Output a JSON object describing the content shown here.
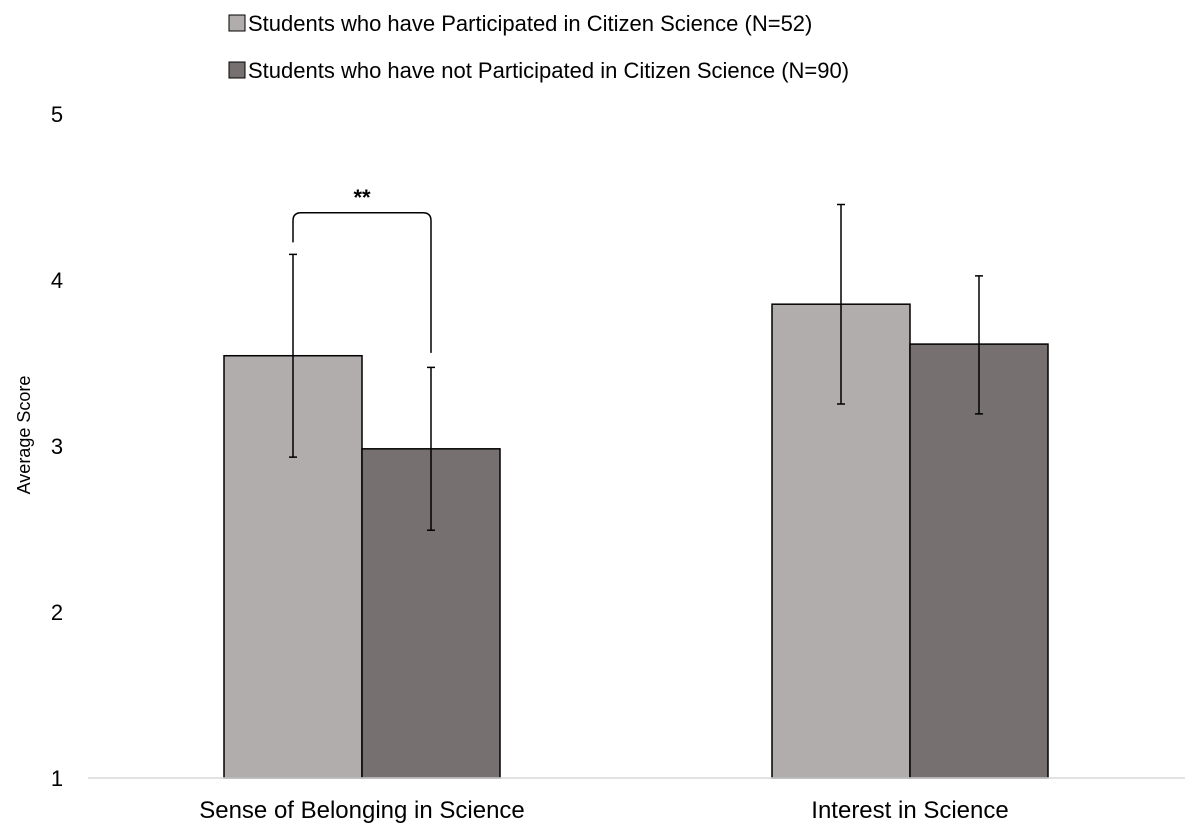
{
  "chart_data": {
    "type": "bar",
    "title": "",
    "xlabel": "",
    "ylabel": "Average Score",
    "ylim": [
      1,
      5
    ],
    "yticks": [
      "1",
      "2",
      "3",
      "4",
      "5"
    ],
    "grid": false,
    "legend_position": "top",
    "categories": [
      "Sense of Belonging in Science",
      "Interest in Science"
    ],
    "series": [
      {
        "name": "Students who have Participated in Citizen Science (N=52)",
        "color": "#b1adac",
        "values": [
          3.54,
          3.85
        ],
        "error_low": [
          2.93,
          3.25
        ],
        "error_high": [
          4.15,
          4.45
        ]
      },
      {
        "name": "Students who have not Participated in Citizen Science (N=90)",
        "color": "#767170",
        "values": [
          2.98,
          3.61
        ],
        "error_low": [
          2.49,
          3.19
        ],
        "error_high": [
          3.47,
          4.02
        ]
      }
    ],
    "annotations": [
      {
        "text": "**",
        "category_index": 0,
        "meaning": "significant difference bracket between series",
        "bracket_level": 4.4
      }
    ]
  },
  "colors": {
    "bar_outline": "#000000",
    "axis_line": "#d9d9d9",
    "error_bar": "#000000"
  }
}
